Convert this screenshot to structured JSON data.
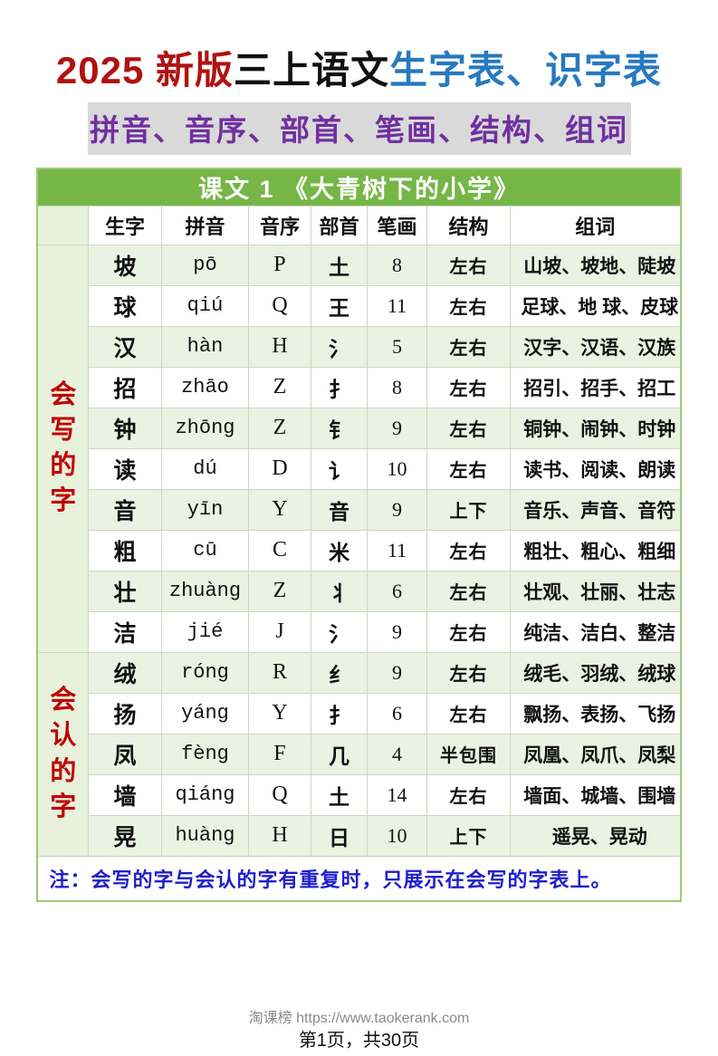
{
  "title": {
    "part_red": "2025 新版",
    "part_black": "三上语文",
    "part_blue": "生字表、识字表"
  },
  "subtitle": "拼音、音序、部首、笔画、结构、组词",
  "lesson_header": "课文 1 《大青树下的小学》",
  "columns": [
    "生字",
    "拼音",
    "音序",
    "部首",
    "笔画",
    "结构",
    "组词"
  ],
  "sections": [
    {
      "label": "会写的字",
      "rows": [
        {
          "char": "坡",
          "pinyin": "pō",
          "initial": "P",
          "radical": "土",
          "strokes": "8",
          "structure": "左右",
          "words": "山坡、坡地、陡坡"
        },
        {
          "char": "球",
          "pinyin": "qiú",
          "initial": "Q",
          "radical": "王",
          "strokes": "11",
          "structure": "左右",
          "words": "足球、地 球、皮球"
        },
        {
          "char": "汉",
          "pinyin": "hàn",
          "initial": "H",
          "radical": "氵",
          "strokes": "5",
          "structure": "左右",
          "words": "汉字、汉语、汉族"
        },
        {
          "char": "招",
          "pinyin": "zhāo",
          "initial": "Z",
          "radical": "扌",
          "strokes": "8",
          "structure": "左右",
          "words": "招引、招手、招工"
        },
        {
          "char": "钟",
          "pinyin": "zhōng",
          "initial": "Z",
          "radical": "钅",
          "strokes": "9",
          "structure": "左右",
          "words": "铜钟、闹钟、时钟"
        },
        {
          "char": "读",
          "pinyin": "dú",
          "initial": "D",
          "radical": "讠",
          "strokes": "10",
          "structure": "左右",
          "words": "读书、阅读、朗读"
        },
        {
          "char": "音",
          "pinyin": "yīn",
          "initial": "Y",
          "radical": "音",
          "strokes": "9",
          "structure": "上下",
          "words": "音乐、声音、音符"
        },
        {
          "char": "粗",
          "pinyin": "cū",
          "initial": "C",
          "radical": "米",
          "strokes": "11",
          "structure": "左右",
          "words": "粗壮、粗心、粗细"
        },
        {
          "char": "壮",
          "pinyin": "zhuàng",
          "initial": "Z",
          "radical": "丬",
          "strokes": "6",
          "structure": "左右",
          "words": "壮观、壮丽、壮志"
        },
        {
          "char": "洁",
          "pinyin": "jié",
          "initial": "J",
          "radical": "氵",
          "strokes": "9",
          "structure": "左右",
          "words": "纯洁、洁白、整洁"
        }
      ]
    },
    {
      "label": "会认的字",
      "rows": [
        {
          "char": "绒",
          "pinyin": "róng",
          "initial": "R",
          "radical": "纟",
          "strokes": "9",
          "structure": "左右",
          "words": "绒毛、羽绒、绒球"
        },
        {
          "char": "扬",
          "pinyin": "yáng",
          "initial": "Y",
          "radical": "扌",
          "strokes": "6",
          "structure": "左右",
          "words": "飘扬、表扬、飞扬"
        },
        {
          "char": "凤",
          "pinyin": "fèng",
          "initial": "F",
          "radical": "几",
          "strokes": "4",
          "structure": "半包围",
          "words": "凤凰、凤爪、凤梨"
        },
        {
          "char": "墙",
          "pinyin": "qiáng",
          "initial": "Q",
          "radical": "土",
          "strokes": "14",
          "structure": "左右",
          "words": "墙面、城墙、围墙"
        },
        {
          "char": "晃",
          "pinyin": "huàng",
          "initial": "H",
          "radical": "日",
          "strokes": "10",
          "structure": "上下",
          "words": "遥晃、晃动"
        }
      ]
    }
  ],
  "note": "注：会写的字与会认的字有重复时，只展示在会写的字表上。",
  "footer": {
    "site": "淘课榜 https://www.taokerank.com",
    "page": "第1页，共30页"
  },
  "colors": {
    "title_red": "#b01210",
    "title_blue": "#2779c0",
    "subtitle_purple": "#7030a0",
    "subtitle_bg": "#d9d9d9",
    "header_green": "#76b647",
    "row_tint_green": "#eaf2e1",
    "section_label_red": "#c00000",
    "note_blue": "#1f1fcc"
  }
}
